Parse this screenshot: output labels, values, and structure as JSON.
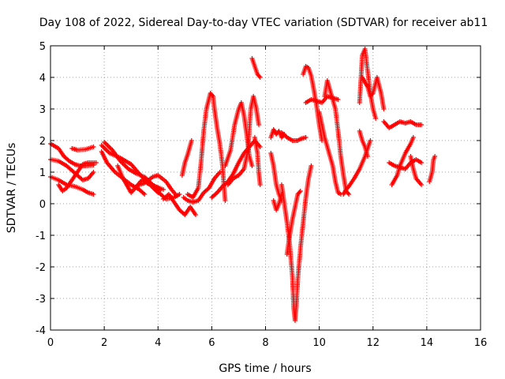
{
  "chart_data": {
    "type": "scatter",
    "title": "Day 108 of 2022, Sidereal Day-to-day VTEC variation (SDTVAR) for receiver ab11",
    "xlabel": "GPS time / hours",
    "ylabel": "SDTVAR / TECUs",
    "xlim": [
      0,
      16
    ],
    "ylim": [
      -4,
      5
    ],
    "x_ticks": [
      "0",
      "2",
      "4",
      "6",
      "8",
      "10",
      "12",
      "14",
      "16"
    ],
    "y_ticks": [
      "-4",
      "-3",
      "-2",
      "-1",
      "0",
      "1",
      "2",
      "3",
      "4",
      "5"
    ],
    "grid": true,
    "marker": "plus",
    "color": "#ff0000",
    "tracks": [
      [
        [
          0.0,
          1.9
        ],
        [
          0.3,
          1.75
        ],
        [
          0.5,
          1.5
        ],
        [
          0.7,
          1.35
        ],
        [
          0.9,
          1.25
        ],
        [
          1.1,
          1.2
        ],
        [
          1.3,
          1.2
        ],
        [
          1.6,
          1.22
        ]
      ],
      [
        [
          0.0,
          1.4
        ],
        [
          0.3,
          1.35
        ],
        [
          0.6,
          1.2
        ],
        [
          0.8,
          1.05
        ],
        [
          1.0,
          0.9
        ],
        [
          1.2,
          0.75
        ],
        [
          1.4,
          0.8
        ],
        [
          1.6,
          1.0
        ]
      ],
      [
        [
          0.0,
          0.85
        ],
        [
          0.3,
          0.75
        ],
        [
          0.6,
          0.6
        ],
        [
          0.9,
          0.55
        ],
        [
          1.2,
          0.45
        ],
        [
          1.4,
          0.35
        ],
        [
          1.6,
          0.3
        ]
      ],
      [
        [
          0.3,
          0.6
        ],
        [
          0.45,
          0.4
        ],
        [
          0.6,
          0.5
        ],
        [
          0.8,
          0.75
        ],
        [
          1.0,
          1.0
        ],
        [
          1.2,
          1.25
        ],
        [
          1.4,
          1.3
        ],
        [
          1.7,
          1.3
        ]
      ],
      [
        [
          0.8,
          1.75
        ],
        [
          1.0,
          1.7
        ],
        [
          1.3,
          1.72
        ],
        [
          1.6,
          1.8
        ]
      ],
      [
        [
          1.9,
          1.85
        ],
        [
          2.2,
          1.6
        ],
        [
          2.6,
          1.45
        ],
        [
          3.0,
          1.25
        ],
        [
          3.3,
          0.95
        ],
        [
          3.6,
          0.7
        ],
        [
          3.9,
          0.55
        ],
        [
          4.2,
          0.45
        ]
      ],
      [
        [
          1.9,
          1.65
        ],
        [
          2.1,
          1.3
        ],
        [
          2.4,
          1.0
        ],
        [
          2.7,
          0.8
        ],
        [
          3.0,
          0.6
        ],
        [
          3.3,
          0.45
        ],
        [
          3.5,
          0.3
        ]
      ],
      [
        [
          2.0,
          1.95
        ],
        [
          2.3,
          1.7
        ],
        [
          2.6,
          1.35
        ],
        [
          2.9,
          1.1
        ],
        [
          3.2,
          0.95
        ],
        [
          3.5,
          0.85
        ],
        [
          3.8,
          0.6
        ],
        [
          4.1,
          0.45
        ]
      ],
      [
        [
          2.5,
          1.2
        ],
        [
          2.7,
          0.8
        ],
        [
          2.9,
          0.5
        ],
        [
          3.0,
          0.35
        ],
        [
          3.2,
          0.55
        ],
        [
          3.4,
          0.75
        ],
        [
          3.7,
          0.6
        ],
        [
          4.0,
          0.35
        ]
      ],
      [
        [
          3.3,
          0.6
        ],
        [
          3.5,
          0.65
        ],
        [
          3.8,
          0.85
        ],
        [
          4.0,
          0.9
        ],
        [
          4.3,
          0.7
        ],
        [
          4.5,
          0.45
        ],
        [
          4.7,
          0.25
        ]
      ],
      [
        [
          3.9,
          0.45
        ],
        [
          4.1,
          0.3
        ],
        [
          4.3,
          0.15
        ],
        [
          4.6,
          0.2
        ],
        [
          4.8,
          0.3
        ]
      ],
      [
        [
          4.2,
          0.15
        ],
        [
          4.4,
          0.3
        ],
        [
          4.6,
          0.05
        ],
        [
          4.8,
          -0.2
        ],
        [
          5.0,
          -0.35
        ],
        [
          5.2,
          -0.1
        ],
        [
          5.4,
          -0.35
        ]
      ],
      [
        [
          4.95,
          0.2
        ],
        [
          5.1,
          0.1
        ],
        [
          5.3,
          0.05
        ],
        [
          5.5,
          0.1
        ],
        [
          5.7,
          0.35
        ],
        [
          5.9,
          0.5
        ],
        [
          6.1,
          0.8
        ],
        [
          6.3,
          1.0
        ]
      ],
      [
        [
          4.9,
          0.9
        ],
        [
          5.0,
          1.3
        ],
        [
          5.1,
          1.55
        ],
        [
          5.2,
          1.85
        ],
        [
          5.25,
          2.0
        ]
      ],
      [
        [
          5.1,
          0.3
        ],
        [
          5.3,
          0.2
        ],
        [
          5.5,
          0.5
        ],
        [
          5.6,
          1.3
        ],
        [
          5.7,
          2.3
        ],
        [
          5.8,
          3.0
        ],
        [
          5.95,
          3.5
        ],
        [
          6.05,
          3.4
        ],
        [
          6.1,
          3.0
        ],
        [
          6.2,
          2.4
        ],
        [
          6.3,
          1.9
        ],
        [
          6.4,
          1.2
        ],
        [
          6.45,
          0.6
        ],
        [
          6.5,
          0.1
        ]
      ],
      [
        [
          6.0,
          0.2
        ],
        [
          6.2,
          0.35
        ],
        [
          6.4,
          0.55
        ],
        [
          6.6,
          0.7
        ],
        [
          6.8,
          0.95
        ],
        [
          7.0,
          1.3
        ],
        [
          7.2,
          1.6
        ],
        [
          7.4,
          1.8
        ],
        [
          7.6,
          2.0
        ],
        [
          7.8,
          1.8
        ]
      ],
      [
        [
          6.5,
          1.2
        ],
        [
          6.7,
          1.7
        ],
        [
          6.85,
          2.5
        ],
        [
          7.0,
          3.0
        ],
        [
          7.1,
          3.2
        ],
        [
          7.2,
          2.8
        ],
        [
          7.3,
          2.2
        ],
        [
          7.4,
          1.5
        ],
        [
          7.5,
          1.2
        ]
      ],
      [
        [
          6.6,
          0.6
        ],
        [
          6.8,
          0.8
        ],
        [
          7.0,
          0.9
        ],
        [
          7.2,
          1.1
        ],
        [
          7.35,
          1.7
        ],
        [
          7.45,
          3.0
        ],
        [
          7.55,
          3.4
        ],
        [
          7.65,
          3.05
        ],
        [
          7.75,
          2.5
        ]
      ],
      [
        [
          7.5,
          4.6
        ],
        [
          7.6,
          4.35
        ],
        [
          7.7,
          4.1
        ],
        [
          7.8,
          4.0
        ]
      ],
      [
        [
          7.6,
          2.1
        ],
        [
          7.7,
          1.6
        ],
        [
          7.75,
          1.0
        ],
        [
          7.8,
          0.6
        ]
      ],
      [
        [
          8.2,
          2.1
        ],
        [
          8.3,
          2.35
        ],
        [
          8.4,
          2.2
        ],
        [
          8.5,
          2.3
        ],
        [
          8.6,
          2.1
        ],
        [
          8.7,
          2.2
        ]
      ],
      [
        [
          8.2,
          1.6
        ],
        [
          8.3,
          1.2
        ],
        [
          8.4,
          0.6
        ],
        [
          8.5,
          0.3
        ],
        [
          8.6,
          0.1
        ]
      ],
      [
        [
          8.3,
          0.1
        ],
        [
          8.4,
          -0.2
        ],
        [
          8.5,
          0.0
        ],
        [
          8.6,
          0.3
        ]
      ],
      [
        [
          8.6,
          0.6
        ],
        [
          8.7,
          0.0
        ],
        [
          8.8,
          -0.6
        ],
        [
          8.9,
          -1.3
        ],
        [
          9.0,
          -2.3
        ],
        [
          9.05,
          -3.3
        ],
        [
          9.1,
          -3.7
        ],
        [
          9.15,
          -3.2
        ],
        [
          9.2,
          -2.4
        ],
        [
          9.3,
          -1.4
        ],
        [
          9.4,
          -0.6
        ],
        [
          9.5,
          0.2
        ],
        [
          9.6,
          0.8
        ],
        [
          9.7,
          1.2
        ]
      ],
      [
        [
          8.8,
          -1.6
        ],
        [
          8.9,
          -1.0
        ],
        [
          9.0,
          -0.5
        ],
        [
          9.1,
          -0.1
        ],
        [
          9.2,
          0.3
        ],
        [
          9.3,
          0.4
        ]
      ],
      [
        [
          8.6,
          2.25
        ],
        [
          8.8,
          2.1
        ],
        [
          9.0,
          2.0
        ],
        [
          9.2,
          2.0
        ],
        [
          9.3,
          2.05
        ],
        [
          9.5,
          2.1
        ]
      ],
      [
        [
          9.4,
          4.1
        ],
        [
          9.5,
          4.35
        ],
        [
          9.6,
          4.3
        ],
        [
          9.7,
          4.05
        ],
        [
          9.8,
          3.6
        ],
        [
          9.9,
          3.1
        ],
        [
          10.0,
          2.5
        ],
        [
          10.1,
          2.0
        ]
      ],
      [
        [
          9.5,
          3.2
        ],
        [
          9.7,
          3.3
        ],
        [
          9.9,
          3.25
        ],
        [
          10.1,
          3.2
        ],
        [
          10.3,
          3.4
        ],
        [
          10.5,
          3.35
        ],
        [
          10.7,
          3.3
        ]
      ],
      [
        [
          10.0,
          2.9
        ],
        [
          10.1,
          2.5
        ],
        [
          10.2,
          2.1
        ],
        [
          10.3,
          1.8
        ],
        [
          10.4,
          1.5
        ],
        [
          10.5,
          1.2
        ],
        [
          10.6,
          0.7
        ],
        [
          10.7,
          0.35
        ],
        [
          10.8,
          0.3
        ]
      ],
      [
        [
          10.2,
          3.4
        ],
        [
          10.3,
          3.9
        ],
        [
          10.4,
          3.6
        ],
        [
          10.5,
          3.3
        ],
        [
          10.6,
          3.0
        ],
        [
          10.7,
          2.3
        ],
        [
          10.8,
          1.5
        ],
        [
          10.9,
          0.9
        ],
        [
          11.0,
          0.4
        ],
        [
          11.1,
          0.3
        ]
      ],
      [
        [
          10.9,
          0.3
        ],
        [
          11.0,
          0.45
        ],
        [
          11.1,
          0.55
        ],
        [
          11.3,
          0.8
        ],
        [
          11.5,
          1.1
        ],
        [
          11.7,
          1.5
        ],
        [
          11.9,
          2.0
        ]
      ],
      [
        [
          11.5,
          3.2
        ],
        [
          11.6,
          4.7
        ],
        [
          11.7,
          4.9
        ],
        [
          11.8,
          4.2
        ],
        [
          11.9,
          3.5
        ],
        [
          12.0,
          3.0
        ],
        [
          12.1,
          2.7
        ]
      ],
      [
        [
          11.6,
          4.0
        ],
        [
          11.8,
          3.7
        ],
        [
          11.9,
          3.4
        ],
        [
          12.0,
          3.5
        ],
        [
          12.15,
          4.0
        ],
        [
          12.3,
          3.5
        ],
        [
          12.4,
          3.0
        ]
      ],
      [
        [
          11.5,
          2.3
        ],
        [
          11.6,
          2.0
        ],
        [
          11.7,
          1.8
        ],
        [
          11.8,
          1.5
        ]
      ],
      [
        [
          12.4,
          2.6
        ],
        [
          12.6,
          2.4
        ],
        [
          12.8,
          2.5
        ],
        [
          13.0,
          2.6
        ],
        [
          13.2,
          2.55
        ],
        [
          13.4,
          2.6
        ],
        [
          13.6,
          2.5
        ],
        [
          13.8,
          2.5
        ]
      ],
      [
        [
          12.6,
          1.3
        ],
        [
          12.8,
          1.2
        ],
        [
          13.0,
          1.15
        ],
        [
          13.2,
          1.1
        ],
        [
          13.4,
          1.3
        ],
        [
          13.6,
          1.4
        ],
        [
          13.8,
          1.3
        ]
      ],
      [
        [
          12.7,
          0.6
        ],
        [
          12.9,
          0.9
        ],
        [
          13.0,
          1.2
        ],
        [
          13.2,
          1.6
        ],
        [
          13.4,
          1.9
        ],
        [
          13.5,
          2.1
        ]
      ],
      [
        [
          13.4,
          1.5
        ],
        [
          13.5,
          1.1
        ],
        [
          13.6,
          0.8
        ],
        [
          13.8,
          0.6
        ]
      ],
      [
        [
          14.1,
          0.7
        ],
        [
          14.2,
          1.0
        ],
        [
          14.25,
          1.4
        ],
        [
          14.3,
          1.5
        ]
      ]
    ]
  }
}
